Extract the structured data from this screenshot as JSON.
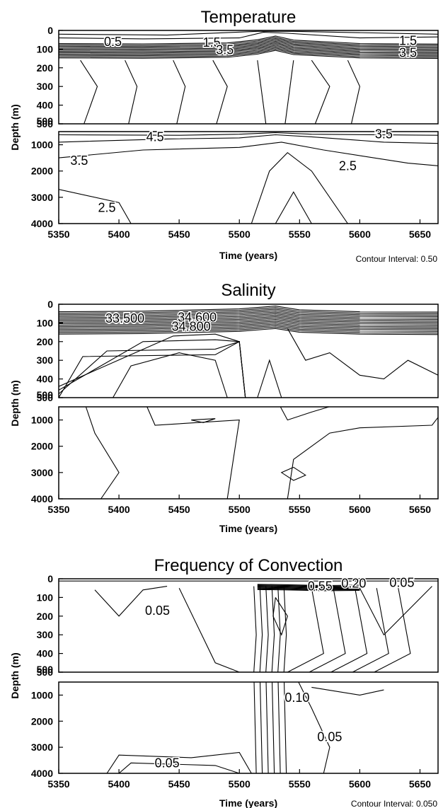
{
  "x_ticks": [
    "5350",
    "5400",
    "5450",
    "5500",
    "5550",
    "5600",
    "5650"
  ],
  "y_ticks_upper": [
    "0",
    "100",
    "200",
    "300",
    "400",
    "500"
  ],
  "y_ticks_lower": [
    "500",
    "1000",
    "2000",
    "3000",
    "4000"
  ],
  "chart_data": [
    {
      "type": "contour",
      "title": "Temperature",
      "xlabel": "Time (years)",
      "ylabel": "Depth (m)",
      "note": "Contour Interval: 0.50",
      "xlim": [
        5350,
        5665
      ],
      "ylim_upper": [
        0,
        500
      ],
      "ylim_lower": [
        500,
        4000
      ],
      "contour_interval": 0.5,
      "contour_labels": [
        {
          "text": "0.5",
          "x": 5395,
          "y": 60
        },
        {
          "text": "1.5",
          "x": 5477,
          "y": 65
        },
        {
          "text": "3.5",
          "x": 5488,
          "y": 105
        },
        {
          "text": "1.5",
          "x": 5640,
          "y": 55
        },
        {
          "text": "3.5",
          "x": 5640,
          "y": 120
        },
        {
          "text": "4.5",
          "x": 5430,
          "y": 700
        },
        {
          "text": "3.5",
          "x": 5367,
          "y": 1600
        },
        {
          "text": "2.5",
          "x": 5390,
          "y": 3400
        },
        {
          "text": "3.5",
          "x": 5620,
          "y": 600
        },
        {
          "text": "2.5",
          "x": 5590,
          "y": 1800
        }
      ]
    },
    {
      "type": "contour",
      "title": "Salinity",
      "xlabel": "Time (years)",
      "ylabel": "Depth (m)",
      "xlim": [
        5350,
        5665
      ],
      "ylim_upper": [
        0,
        500
      ],
      "ylim_lower": [
        500,
        4000
      ],
      "contour_labels": [
        {
          "text": "33.500",
          "x": 5405,
          "y": 75
        },
        {
          "text": "34.600",
          "x": 5465,
          "y": 70
        },
        {
          "text": "34.800",
          "x": 5460,
          "y": 120
        }
      ]
    },
    {
      "type": "contour",
      "title": "Frequency of Convection",
      "xlabel": "Time (years)",
      "ylabel": "Depth (m)",
      "note": "Contour Interval: 0.050",
      "xlim": [
        5350,
        5665
      ],
      "ylim_upper": [
        0,
        500
      ],
      "ylim_lower": [
        500,
        4000
      ],
      "contour_interval": 0.05,
      "contour_labels": [
        {
          "text": "0.05",
          "x": 5432,
          "y": 170
        },
        {
          "text": "0.55",
          "x": 5567,
          "y": 40
        },
        {
          "text": "0.20",
          "x": 5595,
          "y": 25
        },
        {
          "text": "0.05",
          "x": 5635,
          "y": 20
        },
        {
          "text": "0.10",
          "x": 5548,
          "y": 1100
        },
        {
          "text": "0.05",
          "x": 5575,
          "y": 2600
        },
        {
          "text": "0.05",
          "x": 5440,
          "y": 3600
        }
      ]
    }
  ]
}
